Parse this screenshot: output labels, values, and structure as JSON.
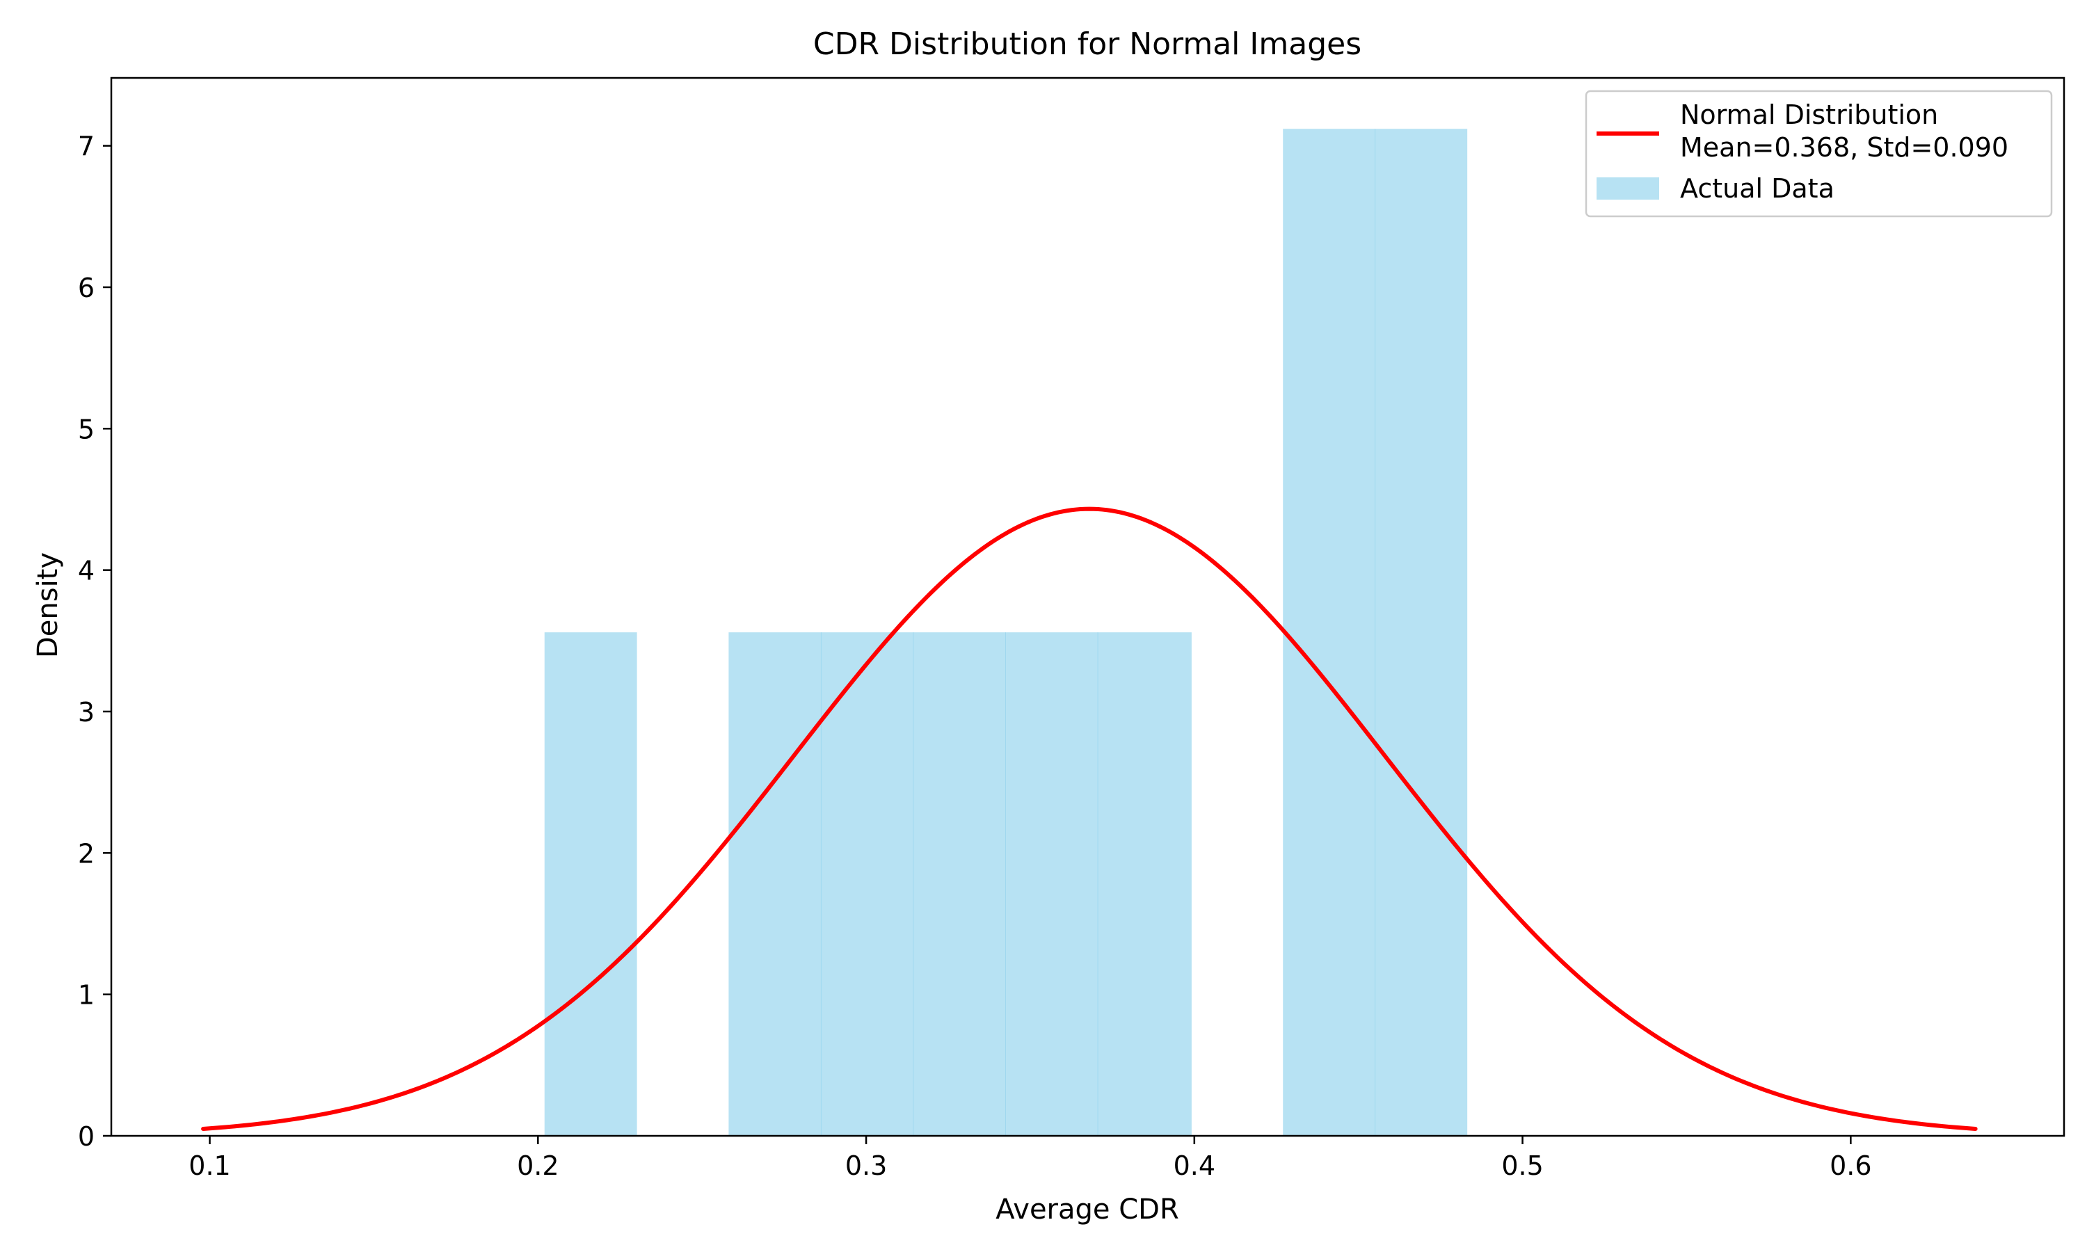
{
  "chart_data": {
    "type": "bar",
    "title": "CDR Distribution for Normal Images",
    "xlabel": "Average CDR",
    "ylabel": "Density",
    "xlim": [
      0.07,
      0.665
    ],
    "ylim": [
      0,
      7.48
    ],
    "xticks": [
      0.1,
      0.2,
      0.3,
      0.4,
      0.5,
      0.6
    ],
    "xtick_labels": [
      "0.1",
      "0.2",
      "0.3",
      "0.4",
      "0.5",
      "0.6"
    ],
    "yticks": [
      0,
      1,
      2,
      3,
      4,
      5,
      6,
      7
    ],
    "ytick_labels": [
      "0",
      "1",
      "2",
      "3",
      "4",
      "5",
      "6",
      "7"
    ],
    "grid": false,
    "legend_position": "top-right",
    "series": [
      {
        "name": "Actual Data",
        "kind": "histogram",
        "color": "#87CEEB",
        "bins": [
          {
            "x0": 0.202,
            "x1": 0.23,
            "density": 3.56
          },
          {
            "x0": 0.23,
            "x1": 0.2581,
            "density": 0
          },
          {
            "x0": 0.2581,
            "x1": 0.2862,
            "density": 3.56
          },
          {
            "x0": 0.2862,
            "x1": 0.3143,
            "density": 3.56
          },
          {
            "x0": 0.3143,
            "x1": 0.3424,
            "density": 3.56
          },
          {
            "x0": 0.3424,
            "x1": 0.3705,
            "density": 3.56
          },
          {
            "x0": 0.3705,
            "x1": 0.399,
            "density": 3.56
          },
          {
            "x0": 0.399,
            "x1": 0.427,
            "density": 0
          },
          {
            "x0": 0.427,
            "x1": 0.455,
            "density": 7.12
          },
          {
            "x0": 0.455,
            "x1": 0.483,
            "density": 7.12
          }
        ]
      },
      {
        "name": "Normal Distribution\nMean=0.368, Std=0.090",
        "kind": "normal_pdf",
        "color": "#FF0000",
        "mean": 0.368,
        "std": 0.09,
        "x_range": [
          0.098,
          0.638
        ]
      }
    ],
    "legend": [
      {
        "lines": [
          "Normal Distribution",
          "Mean=0.368, Std=0.090"
        ],
        "color": "#FF0000",
        "marker": "line"
      },
      {
        "lines": [
          "Actual Data"
        ],
        "color": "#87CEEB",
        "marker": "patch"
      }
    ]
  }
}
